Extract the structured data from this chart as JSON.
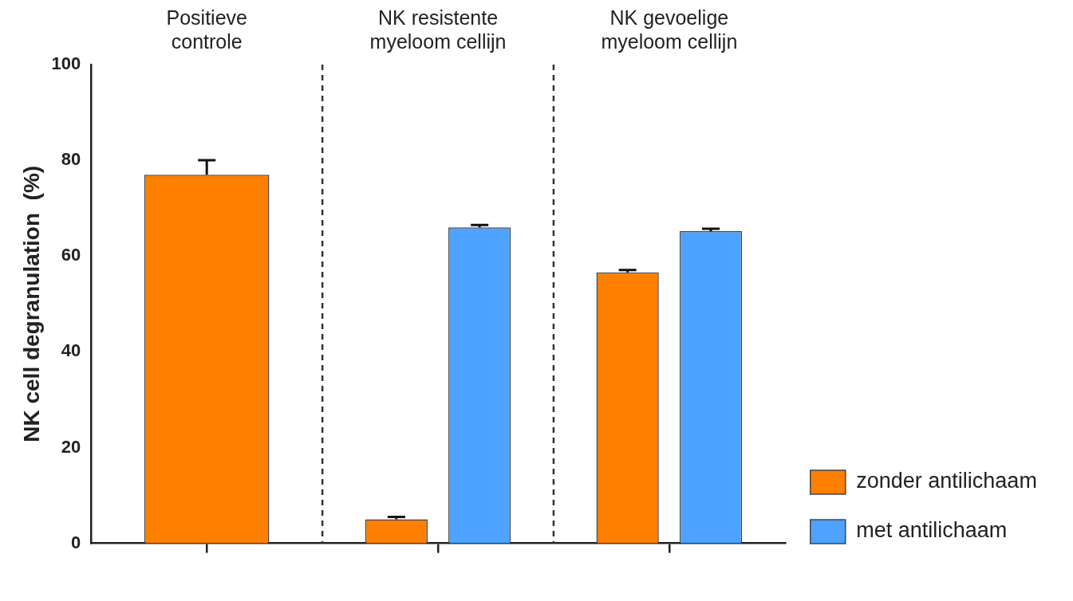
{
  "chart_data": {
    "type": "bar",
    "ylabel": "NK cell degranulation  (%)",
    "categories": [
      "Positieve\ncontrole",
      "NK resistente\nmyeloom cellijn",
      "NK gevoelige\nmyeloom cellijn"
    ],
    "series": [
      {
        "name": "zonder antilichaam",
        "color": "#ff7f00",
        "values": [
          77,
          5,
          56.6
        ],
        "errors": [
          3,
          0.5,
          0.5
        ]
      },
      {
        "name": "met antilichaam",
        "color": "#4da3ff",
        "values": [
          null,
          66,
          65.2
        ],
        "errors": [
          null,
          0.5,
          0.5
        ]
      }
    ],
    "ylim": [
      0,
      100
    ],
    "yticks": [
      0,
      20,
      40,
      60,
      80,
      100
    ],
    "grid": "x",
    "legend": "bottom right"
  }
}
